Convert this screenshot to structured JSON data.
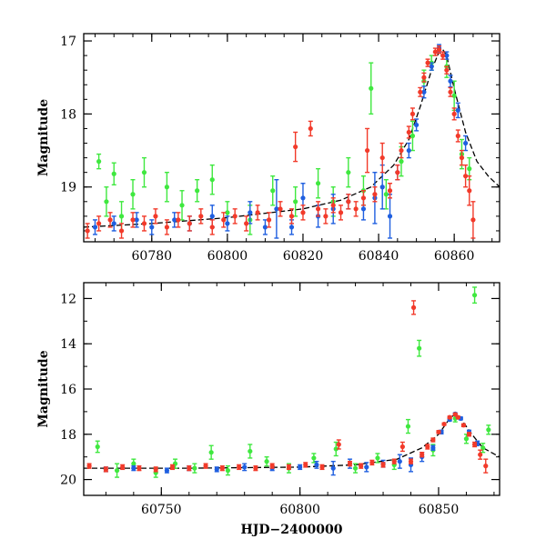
{
  "colors": {
    "green": "#3fe83f",
    "blue": "#1f5fe0",
    "red": "#f23a2a",
    "model": "#000000"
  },
  "chart_data": [
    {
      "type": "scatter",
      "panel": "top",
      "title": "",
      "xlabel": "",
      "ylabel": "Magnitude",
      "xlim": [
        60762,
        60872
      ],
      "ylim": [
        19.75,
        16.9
      ],
      "y_inverted": true,
      "x_ticks": [
        60780,
        60800,
        60820,
        60840,
        60860
      ],
      "y_ticks": [
        17,
        18,
        19
      ],
      "model_curve": {
        "x": [
          60762,
          60780,
          60800,
          60820,
          60830,
          60838,
          60844,
          60848,
          60851,
          60854,
          60856,
          60857,
          60858,
          60860,
          60863,
          60866,
          60869,
          60872
        ],
        "y": [
          19.55,
          19.5,
          19.42,
          19.3,
          19.18,
          19.0,
          18.7,
          18.35,
          17.9,
          17.4,
          17.15,
          17.12,
          17.2,
          17.65,
          18.25,
          18.65,
          18.85,
          19.0
        ]
      },
      "series": [
        {
          "color": "green",
          "points": [
            [
              60766,
              18.65,
              0.1
            ],
            [
              60768,
              19.2,
              0.2
            ],
            [
              60770,
              18.82,
              0.15
            ],
            [
              60772,
              19.4,
              0.2
            ],
            [
              60775,
              19.1,
              0.2
            ],
            [
              60778,
              18.8,
              0.2
            ],
            [
              60784,
              19.0,
              0.2
            ],
            [
              60788,
              19.25,
              0.2
            ],
            [
              60792,
              19.05,
              0.15
            ],
            [
              60796,
              18.9,
              0.2
            ],
            [
              60800,
              19.35,
              0.15
            ],
            [
              60806,
              19.45,
              0.2
            ],
            [
              60812,
              19.05,
              0.2
            ],
            [
              60818,
              19.2,
              0.2
            ],
            [
              60824,
              18.95,
              0.2
            ],
            [
              60828,
              19.2,
              0.2
            ],
            [
              60832,
              18.8,
              0.2
            ],
            [
              60836,
              19.05,
              0.2
            ],
            [
              60838,
              17.65,
              0.35
            ],
            [
              60842,
              19.1,
              0.2
            ],
            [
              60846,
              18.65,
              0.2
            ],
            [
              60849,
              18.3,
              0.2
            ],
            [
              60852,
              17.55,
              0.15
            ],
            [
              60854,
              17.3,
              0.1
            ],
            [
              60858,
              17.35,
              0.15
            ],
            [
              60860,
              17.75,
              0.2
            ],
            [
              60862,
              18.55,
              0.2
            ],
            [
              60864,
              18.75,
              0.15
            ]
          ]
        },
        {
          "color": "blue",
          "points": [
            [
              60765,
              19.55,
              0.1
            ],
            [
              60770,
              19.5,
              0.1
            ],
            [
              60776,
              19.45,
              0.1
            ],
            [
              60780,
              19.55,
              0.1
            ],
            [
              60786,
              19.45,
              0.1
            ],
            [
              60790,
              19.5,
              0.1
            ],
            [
              60796,
              19.4,
              0.15
            ],
            [
              60800,
              19.5,
              0.1
            ],
            [
              60806,
              19.35,
              0.15
            ],
            [
              60810,
              19.55,
              0.1
            ],
            [
              60813,
              19.3,
              0.4
            ],
            [
              60817,
              19.55,
              0.1
            ],
            [
              60820,
              19.15,
              0.2
            ],
            [
              60824,
              19.4,
              0.15
            ],
            [
              60828,
              19.3,
              0.2
            ],
            [
              60832,
              19.2,
              0.1
            ],
            [
              60836,
              19.3,
              0.15
            ],
            [
              60839,
              19.15,
              0.35
            ],
            [
              60841,
              19.0,
              0.3
            ],
            [
              60843,
              19.4,
              0.3
            ],
            [
              60845,
              18.8,
              0.1
            ],
            [
              60848,
              18.5,
              0.1
            ],
            [
              60850,
              18.15,
              0.08
            ],
            [
              60852,
              17.7,
              0.08
            ],
            [
              60854,
              17.35,
              0.05
            ],
            [
              60856,
              17.1,
              0.05
            ],
            [
              60858,
              17.2,
              0.05
            ],
            [
              60859,
              17.55,
              0.08
            ],
            [
              60861,
              17.95,
              0.1
            ],
            [
              60863,
              18.4,
              0.1
            ]
          ]
        },
        {
          "color": "red",
          "points": [
            [
              60763,
              19.6,
              0.1
            ],
            [
              60766,
              19.5,
              0.1
            ],
            [
              60769,
              19.45,
              0.1
            ],
            [
              60772,
              19.6,
              0.1
            ],
            [
              60775,
              19.45,
              0.1
            ],
            [
              60778,
              19.5,
              0.1
            ],
            [
              60781,
              19.4,
              0.1
            ],
            [
              60784,
              19.55,
              0.1
            ],
            [
              60787,
              19.45,
              0.1
            ],
            [
              60790,
              19.5,
              0.1
            ],
            [
              60793,
              19.4,
              0.1
            ],
            [
              60796,
              19.55,
              0.1
            ],
            [
              60799,
              19.45,
              0.1
            ],
            [
              60802,
              19.4,
              0.1
            ],
            [
              60805,
              19.5,
              0.1
            ],
            [
              60808,
              19.35,
              0.1
            ],
            [
              60811,
              19.45,
              0.1
            ],
            [
              60814,
              19.3,
              0.1
            ],
            [
              60817,
              19.4,
              0.1
            ],
            [
              60818,
              18.45,
              0.2
            ],
            [
              60820,
              19.35,
              0.1
            ],
            [
              60822,
              18.2,
              0.1
            ],
            [
              60824,
              19.3,
              0.1
            ],
            [
              60826,
              19.4,
              0.1
            ],
            [
              60828,
              19.25,
              0.1
            ],
            [
              60830,
              19.35,
              0.1
            ],
            [
              60832,
              19.2,
              0.1
            ],
            [
              60834,
              19.3,
              0.1
            ],
            [
              60836,
              19.15,
              0.1
            ],
            [
              60837,
              18.5,
              0.3
            ],
            [
              60839,
              19.1,
              0.1
            ],
            [
              60841,
              18.6,
              0.2
            ],
            [
              60843,
              19.05,
              0.1
            ],
            [
              60845,
              18.8,
              0.1
            ],
            [
              60846,
              18.5,
              0.1
            ],
            [
              60848,
              18.25,
              0.08
            ],
            [
              60849,
              18.0,
              0.08
            ],
            [
              60851,
              17.7,
              0.06
            ],
            [
              60852,
              17.5,
              0.06
            ],
            [
              60853,
              17.3,
              0.05
            ],
            [
              60855,
              17.15,
              0.05
            ],
            [
              60856,
              17.12,
              0.05
            ],
            [
              60857,
              17.2,
              0.05
            ],
            [
              60858,
              17.4,
              0.05
            ],
            [
              60859,
              17.7,
              0.06
            ],
            [
              60860,
              18.0,
              0.08
            ],
            [
              60861,
              18.3,
              0.08
            ],
            [
              60862,
              18.6,
              0.1
            ],
            [
              60863,
              18.85,
              0.15
            ],
            [
              60864,
              19.05,
              0.2
            ],
            [
              60865,
              19.45,
              0.25
            ]
          ]
        }
      ]
    },
    {
      "type": "scatter",
      "panel": "bottom",
      "title": "",
      "xlabel": "HJD−2400000",
      "ylabel": "Magnitude",
      "xlim": [
        60722,
        60872
      ],
      "ylim": [
        20.7,
        11.3
      ],
      "y_inverted": true,
      "x_ticks": [
        60750,
        60800,
        60850
      ],
      "y_ticks": [
        12,
        14,
        16,
        18,
        20
      ],
      "model_curve": {
        "x": [
          60722,
          60760,
          60800,
          60820,
          60835,
          60844,
          60850,
          60854,
          60856,
          60858,
          60862,
          60866,
          60872
        ],
        "y": [
          19.5,
          19.5,
          19.45,
          19.35,
          19.1,
          18.6,
          18.0,
          17.3,
          17.1,
          17.3,
          18.0,
          18.6,
          19.0
        ]
      },
      "series": [
        {
          "color": "green",
          "points": [
            [
              60727,
              18.55,
              0.25
            ],
            [
              60734,
              19.6,
              0.3
            ],
            [
              60740,
              19.3,
              0.2
            ],
            [
              60748,
              19.7,
              0.2
            ],
            [
              60755,
              19.3,
              0.2
            ],
            [
              60762,
              19.5,
              0.2
            ],
            [
              60768,
              18.8,
              0.3
            ],
            [
              60774,
              19.6,
              0.2
            ],
            [
              60782,
              18.75,
              0.3
            ],
            [
              60788,
              19.2,
              0.2
            ],
            [
              60796,
              19.5,
              0.2
            ],
            [
              60805,
              19.05,
              0.2
            ],
            [
              60813,
              18.65,
              0.3
            ],
            [
              60820,
              19.5,
              0.2
            ],
            [
              60828,
              19.05,
              0.2
            ],
            [
              60834,
              19.35,
              0.2
            ],
            [
              60839,
              17.65,
              0.3
            ],
            [
              60843,
              14.2,
              0.35
            ],
            [
              60848,
              18.7,
              0.25
            ],
            [
              60856,
              17.3,
              0.15
            ],
            [
              60860,
              18.2,
              0.2
            ],
            [
              60863,
              11.85,
              0.35
            ],
            [
              60866,
              18.6,
              0.2
            ],
            [
              60868,
              17.8,
              0.2
            ]
          ]
        },
        {
          "color": "blue",
          "points": [
            [
              60730,
              19.55,
              0.1
            ],
            [
              60740,
              19.5,
              0.1
            ],
            [
              60752,
              19.6,
              0.1
            ],
            [
              60760,
              19.5,
              0.1
            ],
            [
              60770,
              19.55,
              0.1
            ],
            [
              60780,
              19.45,
              0.15
            ],
            [
              60790,
              19.5,
              0.1
            ],
            [
              60800,
              19.45,
              0.1
            ],
            [
              60806,
              19.35,
              0.15
            ],
            [
              60812,
              19.5,
              0.3
            ],
            [
              60818,
              19.3,
              0.2
            ],
            [
              60824,
              19.45,
              0.2
            ],
            [
              60830,
              19.3,
              0.15
            ],
            [
              60836,
              19.2,
              0.3
            ],
            [
              60840,
              19.35,
              0.3
            ],
            [
              60844,
              19.0,
              0.2
            ],
            [
              60848,
              18.6,
              0.1
            ],
            [
              60851,
              17.9,
              0.08
            ],
            [
              60854,
              17.35,
              0.06
            ],
            [
              60856,
              17.1,
              0.05
            ],
            [
              60858,
              17.3,
              0.06
            ],
            [
              60861,
              17.9,
              0.08
            ],
            [
              60864,
              18.4,
              0.1
            ]
          ]
        },
        {
          "color": "red",
          "points": [
            [
              60724,
              19.4,
              0.1
            ],
            [
              60730,
              19.55,
              0.1
            ],
            [
              60736,
              19.45,
              0.1
            ],
            [
              60742,
              19.5,
              0.1
            ],
            [
              60748,
              19.55,
              0.1
            ],
            [
              60754,
              19.45,
              0.1
            ],
            [
              60760,
              19.5,
              0.1
            ],
            [
              60766,
              19.4,
              0.1
            ],
            [
              60772,
              19.5,
              0.1
            ],
            [
              60778,
              19.45,
              0.1
            ],
            [
              60784,
              19.5,
              0.1
            ],
            [
              60790,
              19.4,
              0.1
            ],
            [
              60796,
              19.45,
              0.1
            ],
            [
              60802,
              19.35,
              0.1
            ],
            [
              60808,
              19.45,
              0.1
            ],
            [
              60814,
              18.45,
              0.2
            ],
            [
              60818,
              19.3,
              0.1
            ],
            [
              60822,
              19.4,
              0.1
            ],
            [
              60826,
              19.25,
              0.1
            ],
            [
              60830,
              19.35,
              0.1
            ],
            [
              60834,
              19.2,
              0.1
            ],
            [
              60837,
              18.55,
              0.2
            ],
            [
              60840,
              19.2,
              0.1
            ],
            [
              60841,
              12.4,
              0.3
            ],
            [
              60844,
              18.9,
              0.1
            ],
            [
              60846,
              18.55,
              0.1
            ],
            [
              60848,
              18.25,
              0.08
            ],
            [
              60850,
              17.9,
              0.06
            ],
            [
              60852,
              17.55,
              0.05
            ],
            [
              60854,
              17.25,
              0.05
            ],
            [
              60856,
              17.12,
              0.05
            ],
            [
              60857,
              17.25,
              0.05
            ],
            [
              60859,
              17.6,
              0.06
            ],
            [
              60861,
              18.0,
              0.08
            ],
            [
              60863,
              18.45,
              0.1
            ],
            [
              60865,
              18.9,
              0.2
            ],
            [
              60867,
              19.4,
              0.3
            ]
          ]
        }
      ]
    }
  ]
}
